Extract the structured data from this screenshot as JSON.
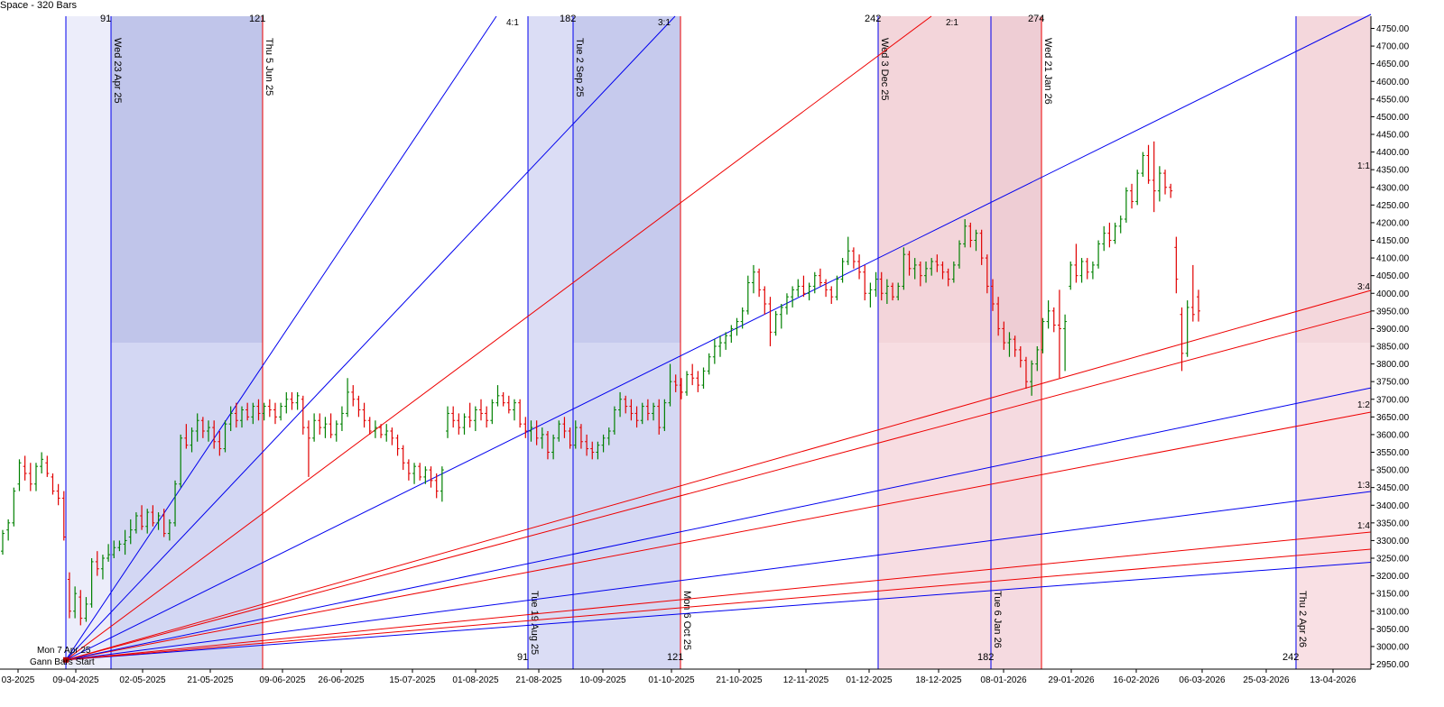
{
  "header": {
    "title": "Space - 320 Bars"
  },
  "chart_data": {
    "type": "bar",
    "subtype": "ohlc",
    "ylim": [
      2910,
      4800
    ],
    "y_ticks": [
      "2950.00",
      "3000.00",
      "3050.00",
      "3100.00",
      "3150.00",
      "3200.00",
      "3250.00",
      "3300.00",
      "3350.00",
      "3400.00",
      "3450.00",
      "3500.00",
      "3550.00",
      "3600.00",
      "3650.00",
      "3700.00",
      "3750.00",
      "3800.00",
      "3850.00",
      "3900.00",
      "3950.00",
      "4000.00",
      "4050.00",
      "4100.00",
      "4150.00",
      "4200.00",
      "4250.00",
      "4300.00",
      "4350.00",
      "4400.00",
      "4450.00",
      "4500.00",
      "4550.00",
      "4600.00",
      "4650.00",
      "4700.00",
      "4750.00"
    ],
    "x_ticks": [
      "03-2025",
      "09-04-2025",
      "02-05-2025",
      "21-05-2025",
      "09-06-2025",
      "26-06-2025",
      "15-07-2025",
      "01-08-2025",
      "21-08-2025",
      "10-09-2025",
      "01-10-2025",
      "21-10-2025",
      "12-11-2025",
      "01-12-2025",
      "18-12-2025",
      "08-01-2026",
      "29-01-2026",
      "16-02-2026",
      "06-03-2026",
      "25-03-2026",
      "13-04-2026"
    ],
    "colors": {
      "up": "#008000",
      "down": "#e00000",
      "blue_line": "#0000ee",
      "red_line": "#ee0000",
      "blue_zone": "#c8cbf0",
      "red_zone": "#f2d0d6"
    },
    "origin": {
      "label_date": "Mon 7 Apr 25",
      "label_start": "Gann Bars Start",
      "price": 2962
    },
    "vertical_lines": [
      {
        "date": "Wed 23 Apr 25",
        "color": "blue",
        "count": "91"
      },
      {
        "date": "Thu 5 Jun 25",
        "color": "red",
        "count": "121"
      },
      {
        "date": "Tue 19 Aug 25",
        "color": "blue",
        "count": "91"
      },
      {
        "date": "Tue 2 Sep 25",
        "color": "blue",
        "count": "182"
      },
      {
        "date": "Mon 6 Oct 25",
        "color": "red",
        "count": "121"
      },
      {
        "date": "Wed 3 Dec 25",
        "color": "blue",
        "count": "242"
      },
      {
        "date": "Tue 6 Jan 26",
        "color": "blue",
        "count": "182"
      },
      {
        "date": "Wed 21 Jan 26",
        "color": "red",
        "count": "274"
      },
      {
        "date": "Thu 2 Apr 26",
        "color": "blue",
        "count": "242"
      }
    ],
    "gann_fan": [
      {
        "label": "4:1",
        "color": "blue"
      },
      {
        "label": "3:1",
        "color": "blue"
      },
      {
        "label": "2:1",
        "color": "red"
      },
      {
        "label": "1:1",
        "color": "blue"
      },
      {
        "label": "3:4",
        "color": "red"
      },
      {
        "label": "1:2",
        "color": "red"
      },
      {
        "label": "1:3",
        "color": "blue"
      },
      {
        "label": "1:4",
        "color": "red"
      },
      {
        "label": "",
        "color": "blue"
      },
      {
        "label": "",
        "color": "red"
      },
      {
        "label": "",
        "color": "blue"
      },
      {
        "label": "",
        "color": "red"
      }
    ],
    "prices": [
      [
        3270,
        3330,
        3260,
        3320
      ],
      [
        3330,
        3360,
        3300,
        3350
      ],
      [
        3350,
        3450,
        3340,
        3440
      ],
      [
        3460,
        3530,
        3440,
        3520
      ],
      [
        3510,
        3540,
        3470,
        3490
      ],
      [
        3490,
        3520,
        3440,
        3460
      ],
      [
        3460,
        3520,
        3440,
        3510
      ],
      [
        3510,
        3550,
        3490,
        3530
      ],
      [
        3520,
        3540,
        3480,
        3490
      ],
      [
        3480,
        3490,
        3430,
        3440
      ],
      [
        3440,
        3460,
        3400,
        3420
      ],
      [
        3420,
        3440,
        3300,
        3310
      ],
      [
        3190,
        3210,
        3080,
        3100
      ],
      [
        3100,
        3170,
        3080,
        3150
      ],
      [
        3140,
        3160,
        3060,
        3080
      ],
      [
        3080,
        3140,
        3070,
        3120
      ],
      [
        3120,
        3250,
        3110,
        3240
      ],
      [
        3240,
        3270,
        3200,
        3220
      ],
      [
        3220,
        3260,
        3190,
        3250
      ],
      [
        3250,
        3290,
        3240,
        3260
      ],
      [
        3260,
        3300,
        3250,
        3280
      ],
      [
        3280,
        3300,
        3270,
        3290
      ],
      [
        3290,
        3330,
        3260,
        3300
      ],
      [
        3310,
        3360,
        3290,
        3330
      ],
      [
        3330,
        3380,
        3320,
        3370
      ],
      [
        3370,
        3400,
        3330,
        3340
      ],
      [
        3340,
        3390,
        3320,
        3380
      ],
      [
        3380,
        3400,
        3340,
        3350
      ],
      [
        3350,
        3380,
        3330,
        3370
      ],
      [
        3370,
        3390,
        3310,
        3320
      ],
      [
        3320,
        3360,
        3300,
        3350
      ],
      [
        3350,
        3470,
        3340,
        3460
      ],
      [
        3460,
        3600,
        3450,
        3590
      ],
      [
        3590,
        3630,
        3560,
        3570
      ],
      [
        3570,
        3620,
        3550,
        3610
      ],
      [
        3610,
        3660,
        3580,
        3640
      ],
      [
        3640,
        3650,
        3590,
        3610
      ],
      [
        3610,
        3640,
        3580,
        3620
      ],
      [
        3620,
        3640,
        3560,
        3580
      ],
      [
        3580,
        3610,
        3540,
        3560
      ],
      [
        3560,
        3640,
        3550,
        3630
      ],
      [
        3630,
        3680,
        3610,
        3660
      ],
      [
        3660,
        3690,
        3620,
        3640
      ],
      [
        3640,
        3680,
        3620,
        3670
      ],
      [
        3670,
        3690,
        3640,
        3650
      ],
      [
        3650,
        3690,
        3630,
        3680
      ],
      [
        3680,
        3700,
        3640,
        3660
      ],
      [
        3660,
        3690,
        3640,
        3680
      ],
      [
        3680,
        3700,
        3650,
        3670
      ],
      [
        3670,
        3690,
        3630,
        3650
      ],
      [
        3650,
        3690,
        3640,
        3680
      ],
      [
        3680,
        3720,
        3660,
        3700
      ],
      [
        3700,
        3720,
        3670,
        3690
      ],
      [
        3690,
        3720,
        3670,
        3710
      ],
      [
        3700,
        3710,
        3600,
        3620
      ],
      [
        3620,
        3640,
        3480,
        3590
      ],
      [
        3590,
        3660,
        3580,
        3640
      ],
      [
        3640,
        3660,
        3600,
        3620
      ],
      [
        3620,
        3650,
        3590,
        3630
      ],
      [
        3630,
        3660,
        3590,
        3600
      ],
      [
        3600,
        3640,
        3580,
        3630
      ],
      [
        3630,
        3680,
        3610,
        3660
      ],
      [
        3660,
        3760,
        3650,
        3720
      ],
      [
        3720,
        3740,
        3680,
        3700
      ],
      [
        3700,
        3710,
        3650,
        3670
      ],
      [
        3670,
        3690,
        3620,
        3640
      ],
      [
        3640,
        3650,
        3600,
        3610
      ],
      [
        3610,
        3640,
        3590,
        3620
      ],
      [
        3620,
        3630,
        3590,
        3600
      ],
      [
        3600,
        3630,
        3580,
        3610
      ],
      [
        3610,
        3620,
        3570,
        3590
      ],
      [
        3590,
        3600,
        3540,
        3560
      ],
      [
        3560,
        3570,
        3500,
        3520
      ],
      [
        3520,
        3530,
        3470,
        3490
      ],
      [
        3490,
        3520,
        3460,
        3510
      ],
      [
        3510,
        3520,
        3470,
        3480
      ],
      [
        3480,
        3510,
        3460,
        3500
      ],
      [
        3500,
        3510,
        3450,
        3470
      ],
      [
        3470,
        3490,
        3420,
        3440
      ],
      [
        3440,
        3510,
        3410,
        3500
      ],
      [
        3610,
        3680,
        3590,
        3660
      ],
      [
        3660,
        3680,
        3620,
        3640
      ],
      [
        3640,
        3660,
        3600,
        3620
      ],
      [
        3620,
        3660,
        3600,
        3650
      ],
      [
        3650,
        3690,
        3620,
        3640
      ],
      [
        3640,
        3680,
        3610,
        3670
      ],
      [
        3670,
        3700,
        3640,
        3660
      ],
      [
        3660,
        3680,
        3620,
        3640
      ],
      [
        3640,
        3700,
        3630,
        3690
      ],
      [
        3690,
        3740,
        3680,
        3710
      ],
      [
        3710,
        3720,
        3680,
        3690
      ],
      [
        3690,
        3710,
        3660,
        3670
      ],
      [
        3670,
        3700,
        3640,
        3690
      ],
      [
        3690,
        3700,
        3620,
        3630
      ],
      [
        3630,
        3650,
        3590,
        3610
      ],
      [
        3610,
        3640,
        3580,
        3620
      ],
      [
        3620,
        3640,
        3570,
        3590
      ],
      [
        3590,
        3620,
        3560,
        3600
      ],
      [
        3600,
        3610,
        3530,
        3550
      ],
      [
        3550,
        3600,
        3530,
        3590
      ],
      [
        3590,
        3640,
        3580,
        3630
      ],
      [
        3630,
        3650,
        3590,
        3610
      ],
      [
        3610,
        3620,
        3560,
        3570
      ],
      [
        3570,
        3640,
        3560,
        3620
      ],
      [
        3620,
        3630,
        3560,
        3580
      ],
      [
        3580,
        3600,
        3540,
        3560
      ],
      [
        3560,
        3580,
        3530,
        3550
      ],
      [
        3550,
        3580,
        3530,
        3570
      ],
      [
        3570,
        3600,
        3550,
        3590
      ],
      [
        3590,
        3620,
        3570,
        3610
      ],
      [
        3610,
        3680,
        3600,
        3670
      ],
      [
        3670,
        3720,
        3650,
        3700
      ],
      [
        3700,
        3710,
        3660,
        3680
      ],
      [
        3680,
        3700,
        3640,
        3660
      ],
      [
        3660,
        3680,
        3620,
        3640
      ],
      [
        3640,
        3690,
        3630,
        3680
      ],
      [
        3680,
        3700,
        3640,
        3660
      ],
      [
        3660,
        3690,
        3640,
        3680
      ],
      [
        3680,
        3700,
        3600,
        3620
      ],
      [
        3620,
        3700,
        3610,
        3690
      ],
      [
        3690,
        3800,
        3680,
        3750
      ],
      [
        3750,
        3770,
        3720,
        3740
      ],
      [
        3740,
        3760,
        3700,
        3720
      ],
      [
        3720,
        3780,
        3710,
        3770
      ],
      [
        3770,
        3800,
        3740,
        3760
      ],
      [
        3760,
        3780,
        3720,
        3740
      ],
      [
        3740,
        3790,
        3730,
        3780
      ],
      [
        3780,
        3830,
        3770,
        3820
      ],
      [
        3820,
        3870,
        3800,
        3850
      ],
      [
        3850,
        3880,
        3820,
        3860
      ],
      [
        3860,
        3890,
        3840,
        3880
      ],
      [
        3880,
        3910,
        3860,
        3900
      ],
      [
        3900,
        3930,
        3880,
        3920
      ],
      [
        3920,
        3960,
        3900,
        3950
      ],
      [
        3950,
        4050,
        3940,
        4030
      ],
      [
        4030,
        4080,
        4000,
        4060
      ],
      [
        4060,
        4070,
        3990,
        4010
      ],
      [
        4010,
        4020,
        3940,
        3970
      ],
      [
        3970,
        3990,
        3850,
        3890
      ],
      [
        3890,
        3950,
        3880,
        3940
      ],
      [
        3940,
        3970,
        3900,
        3960
      ],
      [
        3960,
        4000,
        3940,
        3990
      ],
      [
        3990,
        4020,
        3960,
        4010
      ],
      [
        4010,
        4040,
        3990,
        4020
      ],
      [
        4020,
        4050,
        3990,
        4000
      ],
      [
        4000,
        4030,
        3980,
        4020
      ],
      [
        4020,
        4060,
        4000,
        4050
      ],
      [
        4050,
        4070,
        4020,
        4030
      ],
      [
        4030,
        4040,
        3990,
        4010
      ],
      [
        4010,
        4020,
        3970,
        3990
      ],
      [
        3990,
        4050,
        3980,
        4040
      ],
      [
        4040,
        4100,
        4030,
        4090
      ],
      [
        4090,
        4160,
        4080,
        4120
      ],
      [
        4120,
        4130,
        4070,
        4090
      ],
      [
        4090,
        4110,
        4040,
        4060
      ],
      [
        4060,
        4080,
        3980,
        4000
      ],
      [
        4000,
        4030,
        3960,
        4010
      ],
      [
        4010,
        4060,
        3990,
        4040
      ],
      [
        4040,
        4060,
        3980,
        4000
      ],
      [
        4000,
        4040,
        3970,
        4020
      ],
      [
        4020,
        4030,
        3980,
        3990
      ],
      [
        3990,
        4030,
        3980,
        4020
      ],
      [
        4020,
        4130,
        4010,
        4110
      ],
      [
        4110,
        4120,
        4050,
        4070
      ],
      [
        4070,
        4100,
        4040,
        4080
      ],
      [
        4080,
        4090,
        4020,
        4050
      ],
      [
        4050,
        4090,
        4030,
        4070
      ],
      [
        4070,
        4100,
        4050,
        4090
      ],
      [
        4090,
        4110,
        4060,
        4080
      ],
      [
        4080,
        4090,
        4040,
        4060
      ],
      [
        4060,
        4070,
        4020,
        4040
      ],
      [
        4040,
        4090,
        4030,
        4080
      ],
      [
        4080,
        4150,
        4070,
        4140
      ],
      [
        4140,
        4210,
        4130,
        4190
      ],
      [
        4190,
        4200,
        4130,
        4150
      ],
      [
        4150,
        4180,
        4120,
        4170
      ],
      [
        4170,
        4180,
        4080,
        4100
      ],
      [
        4100,
        4110,
        4000,
        4020
      ],
      [
        4020,
        4040,
        3950,
        3970
      ],
      [
        3970,
        3990,
        3880,
        3900
      ],
      [
        3900,
        3920,
        3840,
        3860
      ],
      [
        3860,
        3890,
        3820,
        3870
      ],
      [
        3870,
        3880,
        3820,
        3840
      ],
      [
        3840,
        3850,
        3790,
        3810
      ],
      [
        3810,
        3820,
        3730,
        3750
      ],
      [
        3750,
        3810,
        3710,
        3800
      ],
      [
        3800,
        3850,
        3780,
        3840
      ],
      [
        3840,
        3930,
        3830,
        3920
      ],
      [
        3920,
        3980,
        3900,
        3950
      ],
      [
        3950,
        3960,
        3890,
        3910
      ],
      [
        3910,
        4010,
        3760,
        3900
      ],
      [
        3900,
        3940,
        3780,
        3920
      ],
      [
        4020,
        4090,
        4010,
        4080
      ],
      [
        4080,
        4140,
        4030,
        4050
      ],
      [
        4050,
        4100,
        4030,
        4090
      ],
      [
        4090,
        4100,
        4040,
        4060
      ],
      [
        4060,
        4090,
        4040,
        4080
      ],
      [
        4080,
        4150,
        4070,
        4140
      ],
      [
        4140,
        4190,
        4120,
        4170
      ],
      [
        4170,
        4200,
        4130,
        4150
      ],
      [
        4150,
        4200,
        4140,
        4190
      ],
      [
        4190,
        4220,
        4170,
        4210
      ],
      [
        4210,
        4300,
        4200,
        4290
      ],
      [
        4290,
        4310,
        4240,
        4260
      ],
      [
        4260,
        4350,
        4250,
        4340
      ],
      [
        4340,
        4400,
        4330,
        4390
      ],
      [
        4390,
        4420,
        4310,
        4320
      ],
      [
        4320,
        4430,
        4230,
        4290
      ],
      [
        4290,
        4360,
        4260,
        4340
      ],
      [
        4340,
        4350,
        4280,
        4300
      ],
      [
        4300,
        4310,
        4270,
        4290
      ],
      [
        4130,
        4160,
        4000,
        4040
      ],
      [
        3940,
        3960,
        3780,
        3830
      ],
      [
        3830,
        3980,
        3820,
        3960
      ],
      [
        3960,
        4080,
        3920,
        3940
      ],
      [
        3990,
        4010,
        3920,
        3950
      ]
    ]
  }
}
